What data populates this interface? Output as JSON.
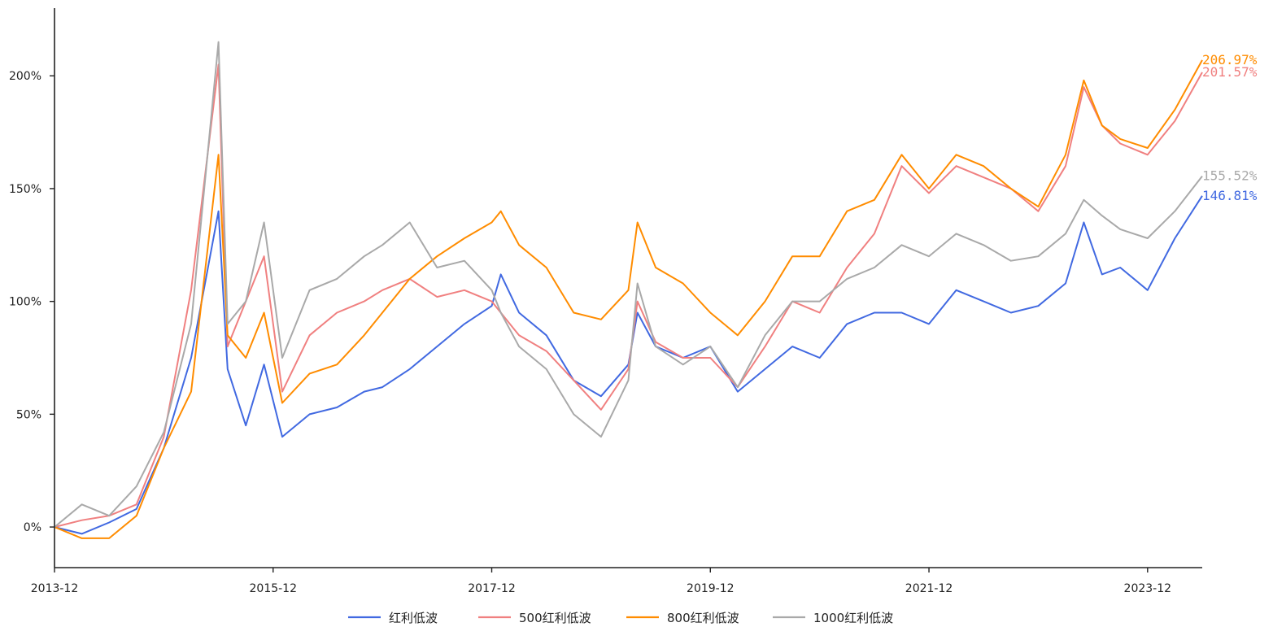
{
  "chart_data": {
    "type": "line",
    "x_ticks": [
      "2013-12",
      "2015-12",
      "2017-12",
      "2019-12",
      "2021-12",
      "2023-12"
    ],
    "y_ticks": [
      "0%",
      "50%",
      "100%",
      "150%",
      "200%"
    ],
    "y_tick_values": [
      0,
      50,
      100,
      150,
      200
    ],
    "xlim": [
      "2013-12",
      "2024-06"
    ],
    "ylim": [
      -18,
      230
    ],
    "grid": false,
    "legend_position": "bottom-center",
    "series": [
      {
        "name": "红利低波",
        "color": "#4169E1",
        "end_label": "146.81%",
        "points": [
          [
            "2013-12",
            0
          ],
          [
            "2014-03",
            -3
          ],
          [
            "2014-06",
            2
          ],
          [
            "2014-09",
            8
          ],
          [
            "2014-12",
            35
          ],
          [
            "2015-03",
            75
          ],
          [
            "2015-06",
            140
          ],
          [
            "2015-07",
            70
          ],
          [
            "2015-09",
            45
          ],
          [
            "2015-11",
            72
          ],
          [
            "2016-01",
            40
          ],
          [
            "2016-04",
            50
          ],
          [
            "2016-07",
            53
          ],
          [
            "2016-10",
            60
          ],
          [
            "2016-12",
            62
          ],
          [
            "2017-03",
            70
          ],
          [
            "2017-06",
            80
          ],
          [
            "2017-09",
            90
          ],
          [
            "2017-12",
            98
          ],
          [
            "2018-01",
            112
          ],
          [
            "2018-03",
            95
          ],
          [
            "2018-06",
            85
          ],
          [
            "2018-09",
            65
          ],
          [
            "2018-12",
            58
          ],
          [
            "2019-03",
            72
          ],
          [
            "2019-04",
            95
          ],
          [
            "2019-06",
            80
          ],
          [
            "2019-09",
            75
          ],
          [
            "2019-12",
            80
          ],
          [
            "2020-03",
            60
          ],
          [
            "2020-06",
            70
          ],
          [
            "2020-09",
            80
          ],
          [
            "2020-12",
            75
          ],
          [
            "2021-03",
            90
          ],
          [
            "2021-06",
            95
          ],
          [
            "2021-09",
            95
          ],
          [
            "2021-12",
            90
          ],
          [
            "2022-03",
            105
          ],
          [
            "2022-06",
            100
          ],
          [
            "2022-09",
            95
          ],
          [
            "2022-12",
            98
          ],
          [
            "2023-03",
            108
          ],
          [
            "2023-05",
            135
          ],
          [
            "2023-07",
            112
          ],
          [
            "2023-09",
            115
          ],
          [
            "2023-12",
            105
          ],
          [
            "2024-03",
            128
          ],
          [
            "2024-06",
            146.81
          ]
        ]
      },
      {
        "name": "500红利低波",
        "color": "#F08080",
        "end_label": "201.57%",
        "points": [
          [
            "2013-12",
            0
          ],
          [
            "2014-03",
            3
          ],
          [
            "2014-06",
            5
          ],
          [
            "2014-09",
            10
          ],
          [
            "2014-12",
            40
          ],
          [
            "2015-03",
            105
          ],
          [
            "2015-06",
            205
          ],
          [
            "2015-07",
            80
          ],
          [
            "2015-09",
            100
          ],
          [
            "2015-11",
            120
          ],
          [
            "2016-01",
            60
          ],
          [
            "2016-04",
            85
          ],
          [
            "2016-07",
            95
          ],
          [
            "2016-10",
            100
          ],
          [
            "2016-12",
            105
          ],
          [
            "2017-03",
            110
          ],
          [
            "2017-06",
            102
          ],
          [
            "2017-09",
            105
          ],
          [
            "2017-12",
            100
          ],
          [
            "2018-01",
            95
          ],
          [
            "2018-03",
            85
          ],
          [
            "2018-06",
            78
          ],
          [
            "2018-09",
            65
          ],
          [
            "2018-12",
            52
          ],
          [
            "2019-03",
            70
          ],
          [
            "2019-04",
            100
          ],
          [
            "2019-06",
            82
          ],
          [
            "2019-09",
            75
          ],
          [
            "2019-12",
            75
          ],
          [
            "2020-03",
            62
          ],
          [
            "2020-06",
            80
          ],
          [
            "2020-09",
            100
          ],
          [
            "2020-12",
            95
          ],
          [
            "2021-03",
            115
          ],
          [
            "2021-06",
            130
          ],
          [
            "2021-09",
            160
          ],
          [
            "2021-12",
            148
          ],
          [
            "2022-03",
            160
          ],
          [
            "2022-06",
            155
          ],
          [
            "2022-09",
            150
          ],
          [
            "2022-12",
            140
          ],
          [
            "2023-03",
            160
          ],
          [
            "2023-05",
            195
          ],
          [
            "2023-07",
            178
          ],
          [
            "2023-09",
            170
          ],
          [
            "2023-12",
            165
          ],
          [
            "2024-03",
            180
          ],
          [
            "2024-06",
            201.57
          ]
        ]
      },
      {
        "name": "800红利低波",
        "color": "#FF8C00",
        "end_label": "206.97%",
        "points": [
          [
            "2013-12",
            0
          ],
          [
            "2014-03",
            -5
          ],
          [
            "2014-06",
            -5
          ],
          [
            "2014-09",
            5
          ],
          [
            "2014-12",
            35
          ],
          [
            "2015-03",
            60
          ],
          [
            "2015-06",
            165
          ],
          [
            "2015-07",
            85
          ],
          [
            "2015-09",
            75
          ],
          [
            "2015-11",
            95
          ],
          [
            "2016-01",
            55
          ],
          [
            "2016-04",
            68
          ],
          [
            "2016-07",
            72
          ],
          [
            "2016-10",
            85
          ],
          [
            "2016-12",
            95
          ],
          [
            "2017-03",
            110
          ],
          [
            "2017-06",
            120
          ],
          [
            "2017-09",
            128
          ],
          [
            "2017-12",
            135
          ],
          [
            "2018-01",
            140
          ],
          [
            "2018-03",
            125
          ],
          [
            "2018-06",
            115
          ],
          [
            "2018-09",
            95
          ],
          [
            "2018-12",
            92
          ],
          [
            "2019-03",
            105
          ],
          [
            "2019-04",
            135
          ],
          [
            "2019-06",
            115
          ],
          [
            "2019-09",
            108
          ],
          [
            "2019-12",
            95
          ],
          [
            "2020-03",
            85
          ],
          [
            "2020-06",
            100
          ],
          [
            "2020-09",
            120
          ],
          [
            "2020-12",
            120
          ],
          [
            "2021-03",
            140
          ],
          [
            "2021-06",
            145
          ],
          [
            "2021-09",
            165
          ],
          [
            "2021-12",
            150
          ],
          [
            "2022-03",
            165
          ],
          [
            "2022-06",
            160
          ],
          [
            "2022-09",
            150
          ],
          [
            "2022-12",
            142
          ],
          [
            "2023-03",
            165
          ],
          [
            "2023-05",
            198
          ],
          [
            "2023-07",
            178
          ],
          [
            "2023-09",
            172
          ],
          [
            "2023-12",
            168
          ],
          [
            "2024-03",
            185
          ],
          [
            "2024-06",
            206.97
          ]
        ]
      },
      {
        "name": "1000红利低波",
        "color": "#A9A9A9",
        "end_label": "155.52%",
        "points": [
          [
            "2013-12",
            0
          ],
          [
            "2014-03",
            10
          ],
          [
            "2014-06",
            5
          ],
          [
            "2014-09",
            18
          ],
          [
            "2014-12",
            42
          ],
          [
            "2015-03",
            90
          ],
          [
            "2015-06",
            215
          ],
          [
            "2015-07",
            90
          ],
          [
            "2015-09",
            100
          ],
          [
            "2015-11",
            135
          ],
          [
            "2016-01",
            75
          ],
          [
            "2016-04",
            105
          ],
          [
            "2016-07",
            110
          ],
          [
            "2016-10",
            120
          ],
          [
            "2016-12",
            125
          ],
          [
            "2017-03",
            135
          ],
          [
            "2017-06",
            115
          ],
          [
            "2017-09",
            118
          ],
          [
            "2017-12",
            105
          ],
          [
            "2018-01",
            95
          ],
          [
            "2018-03",
            80
          ],
          [
            "2018-06",
            70
          ],
          [
            "2018-09",
            50
          ],
          [
            "2018-12",
            40
          ],
          [
            "2019-03",
            65
          ],
          [
            "2019-04",
            108
          ],
          [
            "2019-06",
            80
          ],
          [
            "2019-09",
            72
          ],
          [
            "2019-12",
            80
          ],
          [
            "2020-03",
            62
          ],
          [
            "2020-06",
            85
          ],
          [
            "2020-09",
            100
          ],
          [
            "2020-12",
            100
          ],
          [
            "2021-03",
            110
          ],
          [
            "2021-06",
            115
          ],
          [
            "2021-09",
            125
          ],
          [
            "2021-12",
            120
          ],
          [
            "2022-03",
            130
          ],
          [
            "2022-06",
            125
          ],
          [
            "2022-09",
            118
          ],
          [
            "2022-12",
            120
          ],
          [
            "2023-03",
            130
          ],
          [
            "2023-05",
            145
          ],
          [
            "2023-07",
            138
          ],
          [
            "2023-09",
            132
          ],
          [
            "2023-12",
            128
          ],
          [
            "2024-03",
            140
          ],
          [
            "2024-06",
            155.52
          ]
        ]
      }
    ]
  }
}
